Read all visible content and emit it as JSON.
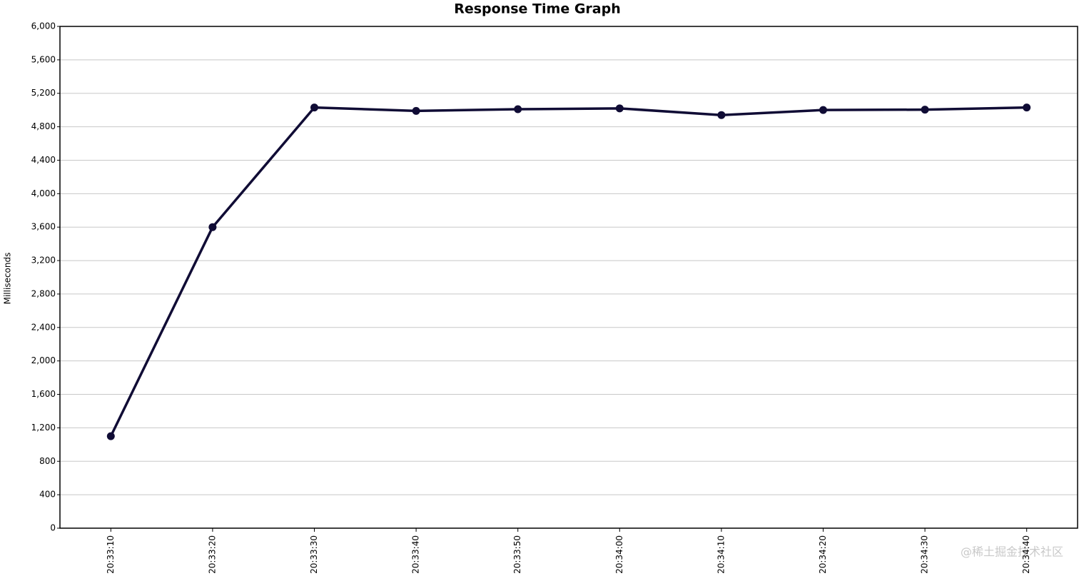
{
  "chart_data": {
    "type": "line",
    "title": "Response Time Graph",
    "y_label": "Milliseconds",
    "categories": [
      "20:33:10",
      "20:33:20",
      "20:33:30",
      "20:33:40",
      "20:33:50",
      "20:34:00",
      "20:34:10",
      "20:34:20",
      "20:34:30",
      "20:34:40"
    ],
    "series": [
      {
        "color": "#100c35",
        "values": [
          1100,
          3600,
          5030,
          4990,
          5010,
          5020,
          4940,
          5000,
          5005,
          5030
        ]
      }
    ],
    "ylim": [
      0,
      6000
    ],
    "yticks": [
      0,
      400,
      800,
      {
        "value": 1200,
        "label": "1,200"
      },
      {
        "value": 1600,
        "label": "1,600"
      },
      {
        "value": 2000,
        "label": "2,000"
      },
      {
        "value": 2400,
        "label": "2,400"
      },
      {
        "value": 2800,
        "label": "2,800"
      },
      {
        "value": 3200,
        "label": "3,200"
      },
      {
        "value": 3600,
        "label": "3,600"
      },
      {
        "value": 4000,
        "label": "4,000"
      },
      {
        "value": 4400,
        "label": "4,400"
      },
      {
        "value": 4800,
        "label": "4,800"
      },
      {
        "value": 5200,
        "label": "5,200"
      },
      {
        "value": 5600,
        "label": "5,600"
      },
      {
        "value": 6000,
        "label": "6,000"
      }
    ],
    "grid": true,
    "watermark": "@稀土掘金技术社区"
  }
}
